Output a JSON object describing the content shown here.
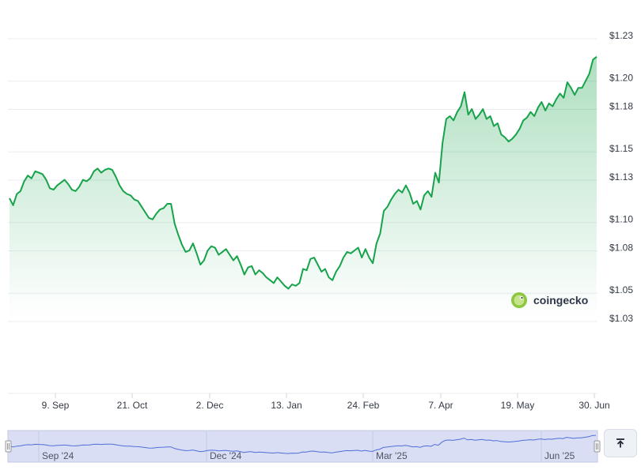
{
  "chart_data": {
    "type": "area",
    "x_tick_labels": [
      "9. Sep",
      "21. Oct",
      "2. Dec",
      "13. Jan",
      "24. Feb",
      "7. Apr",
      "19. May",
      "30. Jun"
    ],
    "y_tick_labels": [
      "$1.23",
      "$1.20",
      "$1.18",
      "$1.15",
      "$1.13",
      "$1.10",
      "$1.08",
      "$1.05",
      "$1.03"
    ],
    "y_ticks": [
      1.23,
      1.2,
      1.18,
      1.15,
      1.13,
      1.1,
      1.08,
      1.05,
      1.03
    ],
    "ylim": [
      1.03,
      1.23
    ],
    "series": [
      {
        "values": [
          1.115,
          1.11,
          1.118,
          1.12,
          1.127,
          1.131,
          1.129,
          1.134,
          1.133,
          1.132,
          1.128,
          1.122,
          1.121,
          1.124,
          1.126,
          1.128,
          1.125,
          1.121,
          1.12,
          1.123,
          1.128,
          1.127,
          1.129,
          1.134,
          1.136,
          1.133,
          1.135,
          1.136,
          1.135,
          1.13,
          1.124,
          1.12,
          1.118,
          1.117,
          1.114,
          1.113,
          1.109,
          1.105,
          1.101,
          1.1,
          1.104,
          1.107,
          1.108,
          1.111,
          1.111,
          1.097,
          1.089,
          1.082,
          1.077,
          1.078,
          1.083,
          1.076,
          1.068,
          1.071,
          1.078,
          1.081,
          1.08,
          1.075,
          1.077,
          1.079,
          1.075,
          1.071,
          1.074,
          1.068,
          1.061,
          1.066,
          1.067,
          1.061,
          1.064,
          1.062,
          1.059,
          1.057,
          1.055,
          1.059,
          1.056,
          1.053,
          1.051,
          1.054,
          1.053,
          1.055,
          1.065,
          1.064,
          1.072,
          1.073,
          1.068,
          1.063,
          1.065,
          1.059,
          1.057,
          1.063,
          1.067,
          1.073,
          1.077,
          1.076,
          1.078,
          1.08,
          1.073,
          1.079,
          1.073,
          1.069,
          1.083,
          1.09,
          1.106,
          1.109,
          1.114,
          1.118,
          1.121,
          1.119,
          1.124,
          1.119,
          1.111,
          1.113,
          1.107,
          1.117,
          1.12,
          1.116,
          1.133,
          1.126,
          1.154,
          1.171,
          1.173,
          1.17,
          1.176,
          1.18,
          1.19,
          1.174,
          1.178,
          1.171,
          1.174,
          1.178,
          1.171,
          1.173,
          1.166,
          1.168,
          1.16,
          1.158,
          1.155,
          1.157,
          1.16,
          1.164,
          1.17,
          1.172,
          1.176,
          1.173,
          1.179,
          1.183,
          1.177,
          1.182,
          1.18,
          1.185,
          1.189,
          1.186,
          1.197,
          1.193,
          1.188,
          1.193,
          1.193,
          1.198,
          1.203,
          1.213,
          1.215
        ],
        "color": "#16a34a"
      }
    ],
    "fill_color": "#16a34a",
    "grid": true,
    "legend": "none"
  },
  "watermark": {
    "text": "coingecko",
    "icon": "gecko-logo-icon"
  },
  "navigator": {
    "labels": [
      "Sep '24",
      "Dec '24",
      "Mar '25",
      "Jun '25"
    ]
  },
  "scroll_top_button": {
    "icon": "arrow-up-to-line-icon"
  },
  "colors": {
    "line": "#16a34a",
    "navigator_line": "#4f6fd8",
    "navigator_fill": "#d9def5"
  }
}
